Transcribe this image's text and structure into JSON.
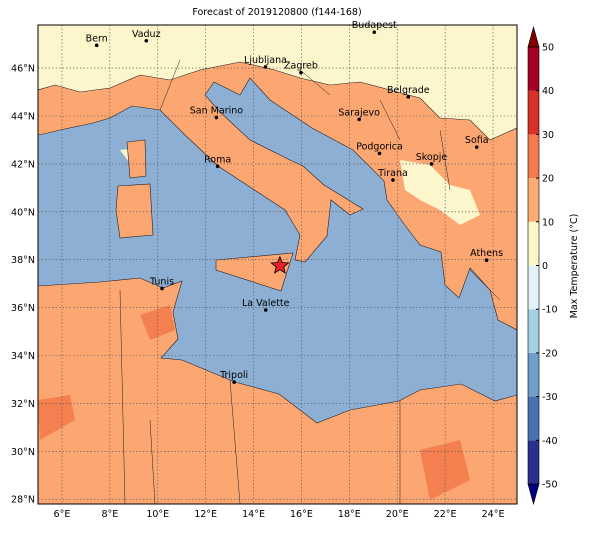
{
  "title": "Forecast of 2019120800 (f144-168)",
  "map": {
    "xlim": [
      5,
      25
    ],
    "ylim": [
      27.8,
      47.8
    ],
    "xticks": [
      {
        "value": 6,
        "label": "6°E"
      },
      {
        "value": 8,
        "label": "8°E"
      },
      {
        "value": 10,
        "label": "10°E"
      },
      {
        "value": 12,
        "label": "12°E"
      },
      {
        "value": 14,
        "label": "14°E"
      },
      {
        "value": 16,
        "label": "16°E"
      },
      {
        "value": 18,
        "label": "18°E"
      },
      {
        "value": 20,
        "label": "20°E"
      },
      {
        "value": 22,
        "label": "22°E"
      },
      {
        "value": 24,
        "label": "24°E"
      }
    ],
    "yticks": [
      {
        "value": 28,
        "label": "28°N"
      },
      {
        "value": 30,
        "label": "30°N"
      },
      {
        "value": 32,
        "label": "32°N"
      },
      {
        "value": 34,
        "label": "34°N"
      },
      {
        "value": 36,
        "label": "36°N"
      },
      {
        "value": 38,
        "label": "38°N"
      },
      {
        "value": 40,
        "label": "40°N"
      },
      {
        "value": 42,
        "label": "42°N"
      },
      {
        "value": 44,
        "label": "44°N"
      },
      {
        "value": 46,
        "label": "46°N"
      }
    ],
    "cities": [
      {
        "name": "Bern",
        "lon": 7.45,
        "lat": 46.95
      },
      {
        "name": "Vaduz",
        "lon": 9.52,
        "lat": 47.14
      },
      {
        "name": "Budapest",
        "lon": 19.04,
        "lat": 47.5
      },
      {
        "name": "Ljubljana",
        "lon": 14.5,
        "lat": 46.05
      },
      {
        "name": "Zagreb",
        "lon": 15.98,
        "lat": 45.81
      },
      {
        "name": "San Marino",
        "lon": 12.45,
        "lat": 43.94
      },
      {
        "name": "Belgrade",
        "lon": 20.46,
        "lat": 44.8
      },
      {
        "name": "Sarajevo",
        "lon": 18.41,
        "lat": 43.86
      },
      {
        "name": "Sofia",
        "lon": 23.32,
        "lat": 42.7
      },
      {
        "name": "Podgorica",
        "lon": 19.26,
        "lat": 42.44
      },
      {
        "name": "Skopje",
        "lon": 21.43,
        "lat": 42.0
      },
      {
        "name": "Roma",
        "lon": 12.5,
        "lat": 41.9
      },
      {
        "name": "Tirana",
        "lon": 19.82,
        "lat": 41.33
      },
      {
        "name": "Athens",
        "lon": 23.73,
        "lat": 37.98
      },
      {
        "name": "Tunis",
        "lon": 10.18,
        "lat": 36.8
      },
      {
        "name": "La Valette",
        "lon": 14.51,
        "lat": 35.9
      },
      {
        "name": "Tripoli",
        "lon": 13.19,
        "lat": 32.89
      }
    ],
    "marker": {
      "lon": 15.1,
      "lat": 37.75,
      "color": "#e8202a"
    }
  },
  "colorbar": {
    "label": "Max Temperature (°C)",
    "ticks": [
      -50,
      -40,
      -30,
      -20,
      -10,
      0,
      10,
      20,
      30,
      40,
      50
    ],
    "colors": [
      "#2c2f8e",
      "#4a72b0",
      "#6e9fcb",
      "#a7cfe4",
      "#e2f2f7",
      "#fdf6cd",
      "#fcac72",
      "#f4794e",
      "#d83128",
      "#a50026"
    ],
    "under": "#000080",
    "over": "#800000"
  }
}
